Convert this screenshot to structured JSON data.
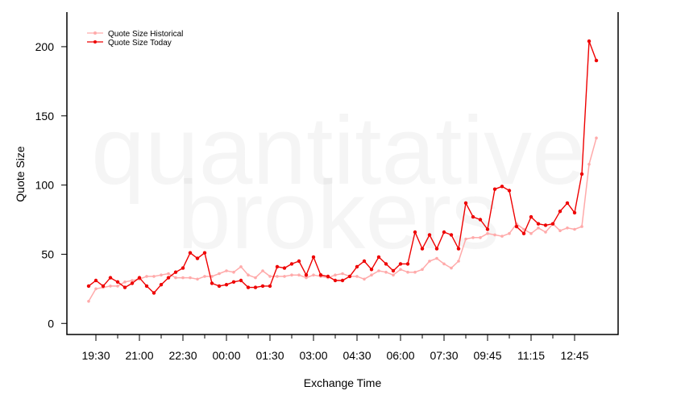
{
  "watermark": {
    "line1": "quantitative",
    "line2": "brokers"
  },
  "chart_data": {
    "type": "line",
    "title": "",
    "xlabel": "Exchange Time",
    "ylabel": "Quote Size",
    "ylim": [
      -8,
      225
    ],
    "yticks": [
      0,
      50,
      100,
      150,
      200
    ],
    "xtick_labels": [
      "19:30",
      "21:00",
      "22:30",
      "00:00",
      "01:30",
      "03:00",
      "04:30",
      "06:00",
      "07:30",
      "09:45",
      "11:15",
      "12:45"
    ],
    "grid": false,
    "legend_position": "top-left",
    "series": [
      {
        "name": "Quote Size Historical",
        "color": "#ffaaaa",
        "values": [
          16,
          25,
          26,
          27,
          27,
          30,
          31,
          32,
          34,
          34,
          35,
          36,
          33,
          33,
          33,
          32,
          34,
          34,
          36,
          38,
          37,
          41,
          35,
          33,
          38,
          34,
          34,
          34,
          35,
          35,
          33,
          35,
          34,
          33,
          35,
          36,
          34,
          34,
          32,
          35,
          38,
          37,
          35,
          39,
          37,
          37,
          39,
          45,
          47,
          43,
          40,
          45,
          61,
          62,
          62,
          65,
          64,
          63,
          65,
          72,
          68,
          65,
          69,
          66,
          72,
          67,
          69,
          68,
          70,
          115,
          134
        ]
      },
      {
        "name": "Quote Size Today",
        "color": "#ee0000",
        "values": [
          27,
          31,
          27,
          33,
          30,
          26,
          29,
          33,
          27,
          22,
          28,
          33,
          37,
          40,
          51,
          47,
          51,
          29,
          27,
          28,
          30,
          31,
          26,
          26,
          27,
          27,
          41,
          40,
          43,
          45,
          35,
          48,
          35,
          34,
          31,
          31,
          34,
          41,
          45,
          39,
          48,
          43,
          38,
          43,
          43,
          66,
          54,
          64,
          54,
          66,
          64,
          54,
          87,
          77,
          75,
          68,
          97,
          99,
          96,
          70,
          65,
          77,
          72,
          71,
          72,
          81,
          87,
          80,
          108,
          204,
          190
        ]
      }
    ]
  }
}
